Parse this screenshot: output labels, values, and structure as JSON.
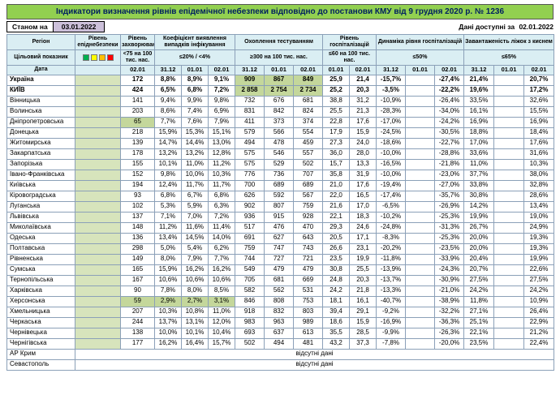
{
  "title": "Індикатори визначення рівнів епідемічної небезпеки відповідно до постанови КМУ від 9 грудня 2020 р. № 1236",
  "as_of": {
    "label": "Станом на",
    "date": "03.01.2022"
  },
  "available": {
    "label": "Дані доступні за",
    "date": "02.01.2022"
  },
  "colors": {
    "title_bg": "#92D050",
    "title_text": "#002060",
    "header_bg": "#DAEEF3",
    "epid_bg": "#D7E4BC",
    "green": "#C4D79B",
    "lavender": "#CCC0DA",
    "border": "#8ba0b8"
  },
  "header": {
    "region": "Регіон",
    "target_label": "Цільовий показник",
    "date_label": "Дата",
    "epid_level": "Рівень епіднебезпеки",
    "legend_colors": [
      "#00B050",
      "#FFFF00",
      "#FFC000",
      "#FF0000"
    ],
    "groups": [
      {
        "title": "Рівень захворюваності",
        "target": "<75 на 100 тис. нас.",
        "dates": [
          "02.01"
        ]
      },
      {
        "title": "Коефіцієнт виявлення випадків інфікування",
        "target": "≤20% / <4%",
        "dates": [
          "31.12",
          "01.01",
          "02.01"
        ]
      },
      {
        "title": "Охоплення тестуванням",
        "target": "≥300 на 100 тис. нас.",
        "dates": [
          "31.12",
          "01.01",
          "02.01"
        ]
      },
      {
        "title": "Рівень госпіталізацій",
        "target": "≤60 на 100 тис. нас.",
        "dates": [
          "01.01",
          "02.01"
        ]
      },
      {
        "title": "Динаміка рівня госпіталізацій",
        "target": "≤50%",
        "dates": [
          "31.12",
          "01.01",
          "02.01"
        ]
      },
      {
        "title": "Завантаженість ліжок з киснем",
        "target": "≤65%",
        "dates": [
          "31.12",
          "01.01",
          "02.01"
        ]
      }
    ]
  },
  "no_data_text": "відсутні дані",
  "rows": [
    {
      "name": "Україна",
      "bold": true,
      "green": [
        4,
        5,
        6
      ],
      "values": [
        "172",
        "8,8%",
        "8,9%",
        "9,1%",
        "909",
        "867",
        "849",
        "25,9",
        "21,4",
        "-15,7%",
        "",
        "-27,4%",
        "21,4%",
        "",
        "20,7%"
      ]
    },
    {
      "name": "КИЇВ",
      "bold": true,
      "green": [
        4,
        5,
        6
      ],
      "values": [
        "424",
        "6,5%",
        "6,8%",
        "7,2%",
        "2 858",
        "2 754",
        "2 734",
        "25,2",
        "20,3",
        "-3,5%",
        "",
        "-22,2%",
        "19,6%",
        "",
        "17,2%"
      ]
    },
    {
      "name": "Вінницька",
      "values": [
        "141",
        "9,4%",
        "9,9%",
        "9,8%",
        "732",
        "676",
        "681",
        "38,8",
        "31,2",
        "-10,9%",
        "",
        "-26,4%",
        "33,5%",
        "",
        "32,6%"
      ]
    },
    {
      "name": "Волинська",
      "values": [
        "203",
        "8,6%",
        "7,4%",
        "6,9%",
        "831",
        "842",
        "824",
        "25,5",
        "21,3",
        "-28,3%",
        "",
        "-34,0%",
        "16,1%",
        "",
        "15,5%"
      ]
    },
    {
      "name": "Дніпропетровська",
      "green": [
        0
      ],
      "values": [
        "65",
        "7,7%",
        "7,6%",
        "7,9%",
        "411",
        "373",
        "374",
        "22,8",
        "17,6",
        "-17,0%",
        "",
        "-24,2%",
        "16,9%",
        "",
        "16,9%"
      ]
    },
    {
      "name": "Донецька",
      "values": [
        "218",
        "15,9%",
        "15,3%",
        "15,1%",
        "579",
        "566",
        "554",
        "17,9",
        "15,9",
        "-24,5%",
        "",
        "-30,5%",
        "18,8%",
        "",
        "18,4%"
      ]
    },
    {
      "name": "Житомирська",
      "values": [
        "139",
        "14,7%",
        "14,4%",
        "13,0%",
        "494",
        "478",
        "459",
        "27,3",
        "24,0",
        "-18,6%",
        "",
        "-22,7%",
        "17,0%",
        "",
        "17,6%"
      ]
    },
    {
      "name": "Закарпатська",
      "values": [
        "178",
        "13,2%",
        "13,2%",
        "12,8%",
        "575",
        "546",
        "557",
        "36,0",
        "28,0",
        "-10,0%",
        "",
        "-28,8%",
        "33,6%",
        "",
        "31,6%"
      ]
    },
    {
      "name": "Запорізька",
      "values": [
        "155",
        "10,1%",
        "11,0%",
        "11,2%",
        "575",
        "529",
        "502",
        "15,7",
        "13,3",
        "-16,5%",
        "",
        "-21,8%",
        "11,0%",
        "",
        "10,3%"
      ]
    },
    {
      "name": "Івано-Франківська",
      "values": [
        "152",
        "9,8%",
        "10,0%",
        "10,3%",
        "776",
        "736",
        "707",
        "35,8",
        "31,9",
        "-10,0%",
        "",
        "-23,0%",
        "37,7%",
        "",
        "38,0%"
      ]
    },
    {
      "name": "Київська",
      "values": [
        "194",
        "12,4%",
        "11,7%",
        "11,7%",
        "700",
        "689",
        "689",
        "21,0",
        "17,6",
        "-19,4%",
        "",
        "-27,0%",
        "33,8%",
        "",
        "32,8%"
      ]
    },
    {
      "name": "Кіровоградська",
      "values": [
        "93",
        "6,8%",
        "6,7%",
        "6,8%",
        "626",
        "592",
        "567",
        "22,0",
        "16,5",
        "-17,4%",
        "",
        "-35,7%",
        "30,8%",
        "",
        "28,6%"
      ]
    },
    {
      "name": "Луганська",
      "values": [
        "102",
        "5,3%",
        "5,9%",
        "6,3%",
        "902",
        "807",
        "759",
        "21,6",
        "17,0",
        "-6,5%",
        "",
        "-26,9%",
        "14,2%",
        "",
        "13,4%"
      ]
    },
    {
      "name": "Львівська",
      "values": [
        "137",
        "7,1%",
        "7,0%",
        "7,2%",
        "936",
        "915",
        "928",
        "22,1",
        "18,3",
        "-10,2%",
        "",
        "-25,3%",
        "19,9%",
        "",
        "19,0%"
      ]
    },
    {
      "name": "Миколаївська",
      "values": [
        "148",
        "11,2%",
        "11,6%",
        "11,4%",
        "517",
        "476",
        "470",
        "29,3",
        "24,6",
        "-24,8%",
        "",
        "-31,3%",
        "26,7%",
        "",
        "24,9%"
      ]
    },
    {
      "name": "Одеська",
      "values": [
        "136",
        "13,4%",
        "14,5%",
        "14,0%",
        "691",
        "627",
        "643",
        "20,5",
        "17,1",
        "-8,3%",
        "",
        "-25,3%",
        "20,0%",
        "",
        "19,3%"
      ]
    },
    {
      "name": "Полтавська",
      "values": [
        "298",
        "5,0%",
        "5,4%",
        "6,2%",
        "759",
        "747",
        "743",
        "26,6",
        "23,1",
        "-20,2%",
        "",
        "-23,5%",
        "20,0%",
        "",
        "19,3%"
      ]
    },
    {
      "name": "Рівненська",
      "values": [
        "149",
        "8,0%",
        "7,9%",
        "7,7%",
        "744",
        "727",
        "721",
        "23,5",
        "19,9",
        "-11,8%",
        "",
        "-33,9%",
        "20,4%",
        "",
        "19,9%"
      ]
    },
    {
      "name": "Сумська",
      "values": [
        "165",
        "15,9%",
        "16,2%",
        "16,2%",
        "549",
        "479",
        "479",
        "30,8",
        "25,5",
        "-13,9%",
        "",
        "-24,3%",
        "20,7%",
        "",
        "22,6%"
      ]
    },
    {
      "name": "Тернопільська",
      "values": [
        "167",
        "10,6%",
        "10,6%",
        "10,6%",
        "705",
        "681",
        "669",
        "24,8",
        "20,3",
        "-13,7%",
        "",
        "-30,9%",
        "27,5%",
        "",
        "27,5%"
      ]
    },
    {
      "name": "Харківська",
      "values": [
        "90",
        "7,8%",
        "8,0%",
        "8,5%",
        "582",
        "562",
        "531",
        "24,2",
        "21,8",
        "-13,3%",
        "",
        "-21,0%",
        "24,2%",
        "",
        "24,2%"
      ]
    },
    {
      "name": "Херсонська",
      "green": [
        0,
        1,
        2,
        3
      ],
      "values": [
        "59",
        "2,9%",
        "2,7%",
        "3,1%",
        "846",
        "808",
        "753",
        "18,1",
        "16,1",
        "-40,7%",
        "",
        "-38,9%",
        "11,8%",
        "",
        "10,9%"
      ]
    },
    {
      "name": "Хмельницька",
      "values": [
        "207",
        "10,3%",
        "10,8%",
        "11,0%",
        "918",
        "832",
        "803",
        "39,4",
        "29,1",
        "-9,2%",
        "",
        "-32,2%",
        "27,1%",
        "",
        "26,4%"
      ]
    },
    {
      "name": "Черкаська",
      "values": [
        "244",
        "13,7%",
        "13,1%",
        "12,0%",
        "983",
        "963",
        "989",
        "18,6",
        "15,9",
        "-16,9%",
        "",
        "-36,3%",
        "25,1%",
        "",
        "22,9%"
      ]
    },
    {
      "name": "Чернівецька",
      "values": [
        "138",
        "10,0%",
        "10,1%",
        "10,4%",
        "693",
        "637",
        "613",
        "35,5",
        "28,5",
        "-9,9%",
        "",
        "-26,3%",
        "22,1%",
        "",
        "21,2%"
      ]
    },
    {
      "name": "Чернігівська",
      "values": [
        "177",
        "16,2%",
        "16,4%",
        "15,7%",
        "502",
        "494",
        "481",
        "43,2",
        "37,3",
        "-7,8%",
        "",
        "-20,0%",
        "23,5%",
        "",
        "22,4%"
      ]
    },
    {
      "name": "АР Крим",
      "no_data": true,
      "values": []
    },
    {
      "name": "Севастополь",
      "no_data": true,
      "values": []
    }
  ]
}
